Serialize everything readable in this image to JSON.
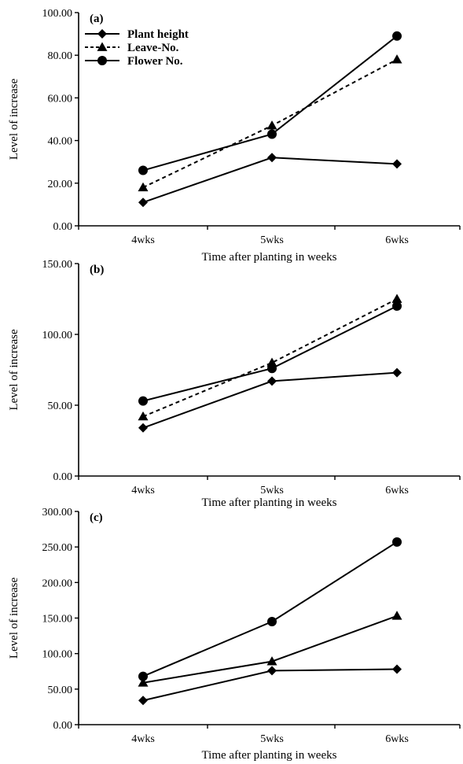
{
  "chart_data": [
    {
      "type": "line",
      "panel_label": "(a)",
      "categories": [
        "4wks",
        "5wks",
        "6wks"
      ],
      "xlabel": "Time after planting in weeks",
      "ylabel": "Level of increase",
      "ylim": [
        0,
        100
      ],
      "yticks": [
        "0.00",
        "20.00",
        "40.00",
        "60.00",
        "80.00",
        "100.00"
      ],
      "legend": "top-left",
      "series": [
        {
          "name": "Plant height",
          "values": [
            11,
            32,
            29
          ],
          "marker": "diamond",
          "style": "solid"
        },
        {
          "name": "Leave-No.",
          "values": [
            18,
            47,
            78
          ],
          "marker": "triangle",
          "style": "dashed"
        },
        {
          "name": "Flower No.",
          "values": [
            26,
            43,
            89
          ],
          "marker": "circle",
          "style": "solid"
        }
      ]
    },
    {
      "type": "line",
      "panel_label": "(b)",
      "categories": [
        "4wks",
        "5wks",
        "6wks"
      ],
      "xlabel": "Time after planting in weeks",
      "ylabel": "Level of increase",
      "ylim": [
        0,
        150
      ],
      "yticks": [
        "0.00",
        "50.00",
        "100.00",
        "150.00"
      ],
      "series": [
        {
          "values": [
            34,
            67,
            73
          ],
          "marker": "diamond",
          "style": "solid"
        },
        {
          "values": [
            42,
            80,
            125
          ],
          "marker": "triangle",
          "style": "dashed"
        },
        {
          "values": [
            53,
            76,
            120
          ],
          "marker": "circle",
          "style": "solid"
        }
      ]
    },
    {
      "type": "line",
      "panel_label": "(c)",
      "categories": [
        "4wks",
        "5wks",
        "6wks"
      ],
      "xlabel": "Time after planting in weeks",
      "ylabel": "Level of increase",
      "ylim": [
        0,
        300
      ],
      "yticks": [
        "0.00",
        "50.00",
        "100.00",
        "150.00",
        "200.00",
        "250.00",
        "300.00"
      ],
      "series": [
        {
          "values": [
            34,
            76,
            78
          ],
          "marker": "diamond",
          "style": "solid"
        },
        {
          "values": [
            59,
            89,
            153
          ],
          "marker": "triangle",
          "style": "solid"
        },
        {
          "values": [
            68,
            145,
            257
          ],
          "marker": "circle",
          "style": "solid"
        }
      ]
    }
  ]
}
